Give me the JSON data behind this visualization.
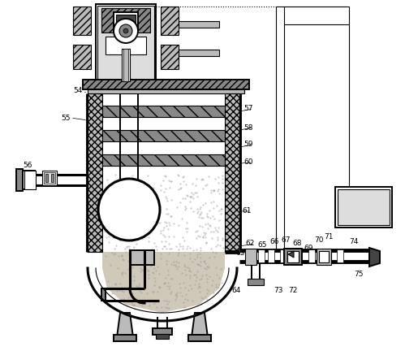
{
  "bg_color": "#ffffff",
  "lc": "#000000",
  "gray_dark": "#444444",
  "gray_med": "#888888",
  "gray_light": "#bbbbbb",
  "gray_lighter": "#dddddd",
  "stipple_bg": "#d0c8b8",
  "fs": 6.5,
  "lw_hair": 0.5,
  "lw_thin": 0.8,
  "lw_med": 1.4,
  "lw_thick": 2.2,
  "lw_vthick": 3.5
}
